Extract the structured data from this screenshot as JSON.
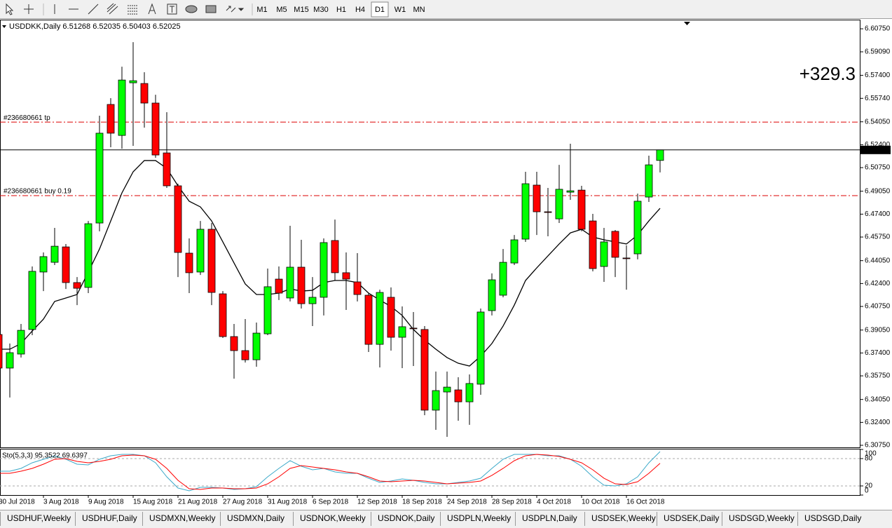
{
  "toolbar": {
    "timeframes": [
      "M1",
      "M5",
      "M15",
      "M30",
      "H1",
      "H4",
      "D1",
      "W1",
      "MN"
    ],
    "active": 6
  },
  "chart_data": {
    "type": "candlestick",
    "header": "USDDKK,Daily  6.51268 6.52035 6.50403 6.52025",
    "profit_label": "+329.3",
    "profit_color": "#c9b77d",
    "up_color": "#00ff00",
    "down_color": "#ff0000",
    "ylim": [
      6.306,
      6.6141
    ],
    "yticks": [
      {
        "value": 6.6075,
        "label": "6.60750"
      },
      {
        "value": 6.5909,
        "label": "6.59090"
      },
      {
        "value": 6.574,
        "label": "6.57400"
      },
      {
        "value": 6.5574,
        "label": "6.55740"
      },
      {
        "value": 6.5405,
        "label": "6.54050"
      },
      {
        "value": 6.524,
        "label": "6.52400"
      },
      {
        "value": 6.5075,
        "label": "6.50750"
      },
      {
        "value": 6.4905,
        "label": "6.49050"
      },
      {
        "value": 6.474,
        "label": "6.47400"
      },
      {
        "value": 6.4575,
        "label": "6.45750"
      },
      {
        "value": 6.4405,
        "label": "6.44050"
      },
      {
        "value": 6.424,
        "label": "6.42400"
      },
      {
        "value": 6.4075,
        "label": "6.40750"
      },
      {
        "value": 6.3905,
        "label": "6.39050"
      },
      {
        "value": 6.374,
        "label": "6.37400"
      },
      {
        "value": 6.3575,
        "label": "6.35750"
      },
      {
        "value": 6.3405,
        "label": "6.34050"
      },
      {
        "value": 6.324,
        "label": "6.32400"
      },
      {
        "value": 6.3075,
        "label": "6.30750"
      }
    ],
    "current_price": 6.52025,
    "levels": [
      {
        "label": "#236680661 tp",
        "value": 6.5403
      },
      {
        "label": "#236680661 buy 0.19",
        "value": 6.4873
      }
    ],
    "categories": [
      "30 Jul 2018",
      null,
      null,
      null,
      "3 Aug 2018",
      null,
      null,
      null,
      "9 Aug 2018",
      null,
      null,
      null,
      "15 Aug 2018",
      null,
      null,
      null,
      "21 Aug 2018",
      null,
      null,
      null,
      "27 Aug 2018",
      null,
      null,
      null,
      "31 Aug 2018",
      null,
      null,
      null,
      "6 Sep 2018",
      null,
      null,
      null,
      "12 Sep 2018",
      null,
      null,
      null,
      "18 Sep 2018",
      null,
      null,
      null,
      "24 Sep 2018",
      null,
      null,
      null,
      "28 Sep 2018",
      null,
      null,
      null,
      "4 Oct 2018",
      null,
      null,
      null,
      "10 Oct 2018",
      null,
      null,
      null,
      "16 Oct 2018",
      null,
      null,
      null
    ],
    "open": [
      6.3873,
      6.3631,
      6.3732,
      6.3909,
      6.4323,
      6.4393,
      6.4504,
      6.4247,
      6.4212,
      6.4676,
      6.553,
      6.5307,
      6.5686,
      6.5681,
      6.554,
      6.5181,
      6.4944,
      6.4459,
      6.4323,
      6.4631,
      6.4166,
      6.3858,
      6.3757,
      6.3691,
      6.3878,
      6.4272,
      6.4136,
      6.4358,
      6.4095,
      6.4141,
      6.455,
      6.4318,
      6.4252,
      6.4156,
      6.3802,
      6.4141,
      6.3853,
      6.3919,
      6.3909,
      6.3328,
      6.3459,
      6.3474,
      6.3388,
      6.3515,
      6.4045,
      6.4156,
      6.4388,
      6.456,
      6.4949,
      6.4757,
      6.4706,
      6.4898,
      6.4913,
      6.4691,
      6.4363,
      6.4616,
      6.4424,
      6.4454,
      6.4863,
      6.51268
    ],
    "high": [
      6.3909,
      6.3808,
      6.3949,
      6.4363,
      6.4464,
      6.4641,
      6.4525,
      6.4287,
      6.4691,
      6.5449,
      6.5575,
      6.5802,
      6.5979,
      6.5762,
      6.56,
      6.5474,
      6.4959,
      6.4565,
      6.4691,
      6.4676,
      6.4186,
      6.3949,
      6.3984,
      6.3959,
      6.4348,
      6.4363,
      6.4656,
      6.4555,
      6.4287,
      6.4565,
      6.4701,
      6.4464,
      6.4459,
      6.4171,
      6.4196,
      6.4212,
      6.4075,
      6.4035,
      6.3934,
      6.3606,
      6.3606,
      6.3565,
      6.3585,
      6.406,
      6.4313,
      6.4489,
      6.459,
      6.5045,
      6.5045,
      6.4929,
      6.5095,
      6.5247,
      6.4944,
      6.4742,
      6.4641,
      6.4626,
      6.4515,
      6.4888,
      6.5161,
      6.52035
    ],
    "low": [
      6.3555,
      6.3419,
      6.3707,
      6.3868,
      6.4186,
      6.4373,
      6.4201,
      6.4085,
      6.4171,
      6.4616,
      6.5222,
      6.5211,
      6.5232,
      6.5363,
      6.5146,
      6.4929,
      6.4287,
      6.4171,
      6.4302,
      6.4085,
      6.3848,
      6.3555,
      6.3671,
      6.3641,
      6.3868,
      6.4121,
      6.4111,
      6.406,
      6.3934,
      6.401,
      6.4262,
      6.405,
      6.4111,
      6.3747,
      6.3636,
      6.3757,
      6.3631,
      6.3646,
      6.3292,
      6.3186,
      6.3136,
      6.3252,
      6.3222,
      6.3439,
      6.401,
      6.4141,
      6.4373,
      6.454,
      6.459,
      6.458,
      6.4676,
      6.4843,
      6.4616,
      6.4328,
      6.4252,
      6.4287,
      6.4196,
      6.4414,
      6.4828,
      6.50403
    ],
    "close": [
      6.3631,
      6.3742,
      6.3903,
      6.4328,
      6.4434,
      6.4509,
      6.4247,
      6.4206,
      6.4671,
      6.5323,
      6.5323,
      6.5706,
      6.5701,
      6.554,
      6.5166,
      6.4944,
      6.4464,
      6.4318,
      6.4631,
      6.4176,
      6.3858,
      6.3757,
      6.3691,
      6.3883,
      6.4217,
      6.4171,
      6.4358,
      6.4095,
      6.4141,
      6.4535,
      6.4318,
      6.4272,
      6.4161,
      6.3802,
      6.4176,
      6.3853,
      6.3929,
      6.3914,
      6.3328,
      6.3469,
      6.3494,
      6.3388,
      6.352,
      6.4035,
      6.4267,
      6.4393,
      6.4555,
      6.4959,
      6.4757,
      6.4752,
      6.4919,
      6.4908,
      6.4631,
      6.4348,
      6.454,
      6.4429,
      6.4419,
      6.4833,
      6.5095,
      6.52025
    ],
    "ma": {
      "color": "#000000",
      "values": [
        6.3767,
        6.3767,
        6.3808,
        6.3898,
        6.3984,
        6.4111,
        6.4136,
        6.4161,
        6.4323,
        6.4489,
        6.4691,
        6.4893,
        6.5045,
        6.5126,
        6.5126,
        6.507,
        6.4944,
        6.4833,
        6.4792,
        6.4691,
        6.454,
        6.4388,
        6.4237,
        6.4161,
        6.4161,
        6.4171,
        6.4201,
        6.4186,
        6.4191,
        6.4247,
        6.4262,
        6.4262,
        6.4247,
        6.4171,
        6.4121,
        6.4075,
        6.401,
        6.3909,
        6.3833,
        6.3767,
        6.3707,
        6.3666,
        6.3646,
        6.3717,
        6.3808,
        6.3934,
        6.4085,
        6.4262,
        6.4353,
        6.4439,
        6.4525,
        6.4605,
        6.4631,
        6.4575,
        6.4555,
        6.454,
        6.4525,
        6.459,
        6.4691,
        6.4782
      ]
    },
    "stochastic": {
      "label": "Sto(5,3,3) 95.3522 69.6397",
      "ylim": [
        0,
        100
      ],
      "yticks": [
        100,
        80,
        20,
        0
      ],
      "levels": [
        80,
        20
      ],
      "main": {
        "color": "#3ba9c9",
        "values": [
          52.3,
          52.3,
          58.5,
          70.8,
          78.5,
          86.2,
          78.5,
          67.7,
          66.2,
          78.5,
          86.2,
          89.2,
          89.2,
          86.2,
          70.8,
          40,
          15.4,
          9.2,
          16.9,
          16.9,
          15.4,
          12.3,
          13.8,
          18.5,
          40,
          58.5,
          75.4,
          63.1,
          55.4,
          58.5,
          50.8,
          47.7,
          47.7,
          36.9,
          27.7,
          30.8,
          35.4,
          32.3,
          27.7,
          24.6,
          24.6,
          27.7,
          30.8,
          36.9,
          58.5,
          78.5,
          89.2,
          89.2,
          89.2,
          86.2,
          86.2,
          78.5,
          63.1,
          40,
          21.5,
          20,
          24.6,
          40,
          70.8,
          95.35
        ]
      },
      "signal": {
        "color": "#ff0000",
        "values": [
          47.7,
          47.7,
          52.3,
          58.5,
          67.7,
          78.5,
          80,
          73.8,
          70.8,
          73.8,
          78.5,
          86.2,
          87.7,
          86.2,
          78.5,
          58.5,
          32.3,
          13.8,
          12.3,
          15.4,
          15.4,
          13.8,
          13.8,
          15.4,
          24.6,
          40,
          58.5,
          64.6,
          61.5,
          58.5,
          55.4,
          50.8,
          47.7,
          40,
          30.8,
          29.2,
          30.8,
          32.3,
          30.8,
          27.7,
          24.6,
          26.2,
          27.7,
          30.8,
          43.1,
          58.5,
          75.4,
          86.2,
          89.2,
          87.7,
          84.6,
          78.5,
          70.8,
          55.4,
          36.9,
          24.6,
          23.1,
          29.2,
          47.7,
          69.64
        ]
      }
    }
  },
  "tabs": [
    "USDHUF,Weekly",
    "USDHUF,Daily",
    "USDMXN,Weekly",
    "USDMXN,Daily",
    "USDNOK,Weekly",
    "USDNOK,Daily",
    "USDPLN,Weekly",
    "USDPLN,Daily",
    "USDSEK,Weekly",
    "USDSEK,Daily",
    "USDSGD,Weekly",
    "USDSGD,Daily"
  ]
}
